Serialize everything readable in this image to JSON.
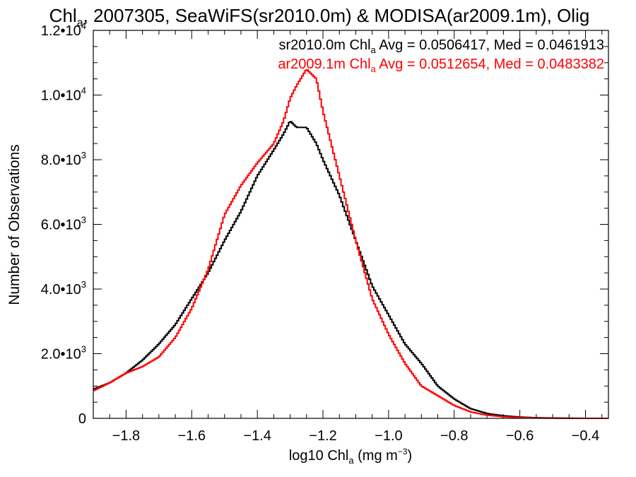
{
  "chart_data": {
    "type": "line",
    "title": {
      "prefix": "Chl",
      "subscript": "a",
      "suffix": ", 2007305, SeaWiFS(sr2010.0m) & MODISA(ar2009.1m), Olig"
    },
    "xlabel": {
      "prefix": "log10 Chl",
      "subscript": "a",
      "suffix": " (mg m",
      "superscript": "−3",
      "end": ")"
    },
    "ylabel": "Number of Observations",
    "xlim": [
      -1.9,
      -0.33
    ],
    "ylim": [
      0,
      12000
    ],
    "xticks": [
      {
        "value": -1.8,
        "label": "−1.8"
      },
      {
        "value": -1.6,
        "label": "−1.6"
      },
      {
        "value": -1.4,
        "label": "−1.4"
      },
      {
        "value": -1.2,
        "label": "−1.2"
      },
      {
        "value": -1.0,
        "label": "−1.0"
      },
      {
        "value": -0.8,
        "label": "−0.8"
      },
      {
        "value": -0.6,
        "label": "−0.6"
      },
      {
        "value": -0.4,
        "label": "−0.4"
      }
    ],
    "yticks": [
      {
        "value": 0,
        "mant": "0",
        "exp": ""
      },
      {
        "value": 2000,
        "mant": "2.0•10",
        "exp": "3"
      },
      {
        "value": 4000,
        "mant": "4.0•10",
        "exp": "3"
      },
      {
        "value": 6000,
        "mant": "6.0•10",
        "exp": "3"
      },
      {
        "value": 8000,
        "mant": "8.0•10",
        "exp": "3"
      },
      {
        "value": 10000,
        "mant": "1.0•10",
        "exp": "4"
      },
      {
        "value": 12000,
        "mant": "1.2•10",
        "exp": "4"
      }
    ],
    "x_minor_step": 0.05,
    "y_minor_step": 500,
    "grid": false,
    "legend_position": "top-right",
    "series": [
      {
        "name": "sr2010.0m",
        "color": "#000000",
        "legend": {
          "prefix": "sr2010.0m Chl",
          "subscript": "a",
          "suffix": " Avg = 0.0506417, Med = 0.0461913"
        },
        "x": [
          -1.9,
          -1.85,
          -1.8,
          -1.75,
          -1.7,
          -1.65,
          -1.6,
          -1.55,
          -1.5,
          -1.45,
          -1.4,
          -1.35,
          -1.32,
          -1.3,
          -1.28,
          -1.25,
          -1.22,
          -1.2,
          -1.15,
          -1.1,
          -1.05,
          -1.0,
          -0.95,
          -0.9,
          -0.85,
          -0.8,
          -0.75,
          -0.7,
          -0.65,
          -0.6,
          -0.55,
          -0.5,
          -0.45,
          -0.4,
          -0.33
        ],
        "y": [
          900,
          1100,
          1400,
          1800,
          2300,
          2900,
          3700,
          4500,
          5500,
          6400,
          7500,
          8300,
          8800,
          9200,
          9000,
          9000,
          8500,
          8000,
          6900,
          5500,
          4100,
          3200,
          2300,
          1700,
          1000,
          600,
          300,
          150,
          80,
          40,
          20,
          10,
          5,
          0,
          0
        ]
      },
      {
        "name": "ar2009.1m",
        "color": "#ff0000",
        "legend": {
          "prefix": "ar2009.1m Chl",
          "subscript": "a",
          "suffix": " Avg = 0.0512654, Med = 0.0483382"
        },
        "x": [
          -1.9,
          -1.85,
          -1.8,
          -1.75,
          -1.7,
          -1.65,
          -1.6,
          -1.55,
          -1.5,
          -1.45,
          -1.4,
          -1.35,
          -1.32,
          -1.3,
          -1.28,
          -1.25,
          -1.22,
          -1.2,
          -1.15,
          -1.1,
          -1.05,
          -1.0,
          -0.95,
          -0.9,
          -0.85,
          -0.8,
          -0.75,
          -0.7,
          -0.65,
          -0.6,
          -0.55,
          -0.5,
          -0.45,
          -0.4,
          -0.33
        ],
        "y": [
          850,
          1100,
          1400,
          1600,
          1900,
          2500,
          3400,
          4600,
          6300,
          7200,
          7900,
          8500,
          9200,
          9900,
          10300,
          10800,
          10500,
          9500,
          7500,
          5500,
          3700,
          2600,
          1700,
          1000,
          700,
          400,
          200,
          100,
          50,
          25,
          10,
          5,
          0,
          0,
          0
        ]
      }
    ]
  }
}
